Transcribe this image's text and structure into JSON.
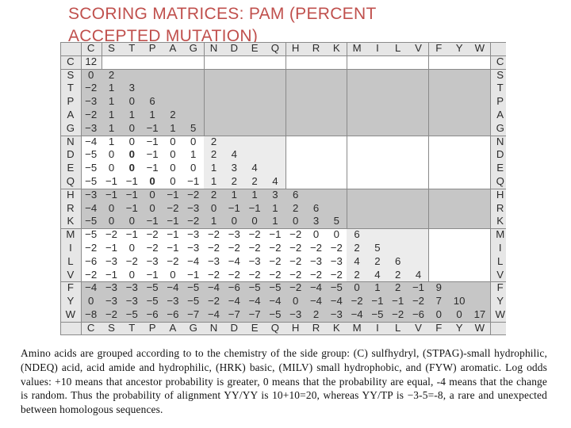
{
  "title": {
    "line1": "SCORING MATRICES: PAM (PERCENT",
    "line2": "ACCEPTED  MUTATION)"
  },
  "matrix": {
    "amino_acids": [
      "C",
      "S",
      "T",
      "P",
      "A",
      "G",
      "N",
      "D",
      "E",
      "Q",
      "H",
      "R",
      "K",
      "M",
      "I",
      "L",
      "V",
      "F",
      "Y",
      "W"
    ],
    "group_sizes": [
      1,
      5,
      4,
      3,
      4,
      3
    ],
    "rows": [
      [
        "12"
      ],
      [
        "0",
        "2"
      ],
      [
        "−2",
        "1",
        "3"
      ],
      [
        "−3",
        "1",
        "0",
        "6"
      ],
      [
        "−2",
        "1",
        "1",
        "1",
        "2"
      ],
      [
        "−3",
        "1",
        "0",
        "−1",
        "1",
        "5"
      ],
      [
        "−4",
        "1",
        "0",
        "−1",
        "0",
        "0",
        "2"
      ],
      [
        "−5",
        "0",
        "0",
        "−1",
        "0",
        "1",
        "2",
        "4"
      ],
      [
        "−5",
        "0",
        "0",
        "−1",
        "0",
        "0",
        "1",
        "3",
        "4"
      ],
      [
        "−5",
        "−1",
        "−1",
        "0",
        "0",
        "−1",
        "1",
        "2",
        "2",
        "4"
      ],
      [
        "−3",
        "−1",
        "−1",
        "0",
        "−1",
        "−2",
        "2",
        "1",
        "1",
        "3",
        "6"
      ],
      [
        "−4",
        "0",
        "−1",
        "0",
        "−2",
        "−3",
        "0",
        "−1",
        "−1",
        "1",
        "2",
        "6"
      ],
      [
        "−5",
        "0",
        "0",
        "−1",
        "−1",
        "−2",
        "1",
        "0",
        "0",
        "1",
        "0",
        "3",
        "5"
      ],
      [
        "−5",
        "−2",
        "−1",
        "−2",
        "−1",
        "−3",
        "−2",
        "−3",
        "−2",
        "−1",
        "−2",
        "0",
        "0",
        "6"
      ],
      [
        "−2",
        "−1",
        "0",
        "−2",
        "−1",
        "−3",
        "−2",
        "−2",
        "−2",
        "−2",
        "−2",
        "−2",
        "−2",
        "2",
        "5"
      ],
      [
        "−6",
        "−3",
        "−2",
        "−3",
        "−2",
        "−4",
        "−3",
        "−4",
        "−3",
        "−2",
        "−2",
        "−3",
        "−3",
        "4",
        "2",
        "6"
      ],
      [
        "−2",
        "−1",
        "0",
        "−1",
        "0",
        "−1",
        "−2",
        "−2",
        "−2",
        "−2",
        "−2",
        "−2",
        "−2",
        "2",
        "4",
        "2",
        "4"
      ],
      [
        "−4",
        "−3",
        "−3",
        "−5",
        "−4",
        "−5",
        "−4",
        "−6",
        "−5",
        "−5",
        "−2",
        "−4",
        "−5",
        "0",
        "1",
        "2",
        "−1",
        "9"
      ],
      [
        "0",
        "−3",
        "−3",
        "−5",
        "−3",
        "−5",
        "−2",
        "−4",
        "−4",
        "−4",
        "0",
        "−4",
        "−4",
        "−2",
        "−1",
        "−1",
        "−2",
        "7",
        "10"
      ],
      [
        "−8",
        "−2",
        "−5",
        "−6",
        "−6",
        "−7",
        "−4",
        "−7",
        "−7",
        "−5",
        "−3",
        "2",
        "−3",
        "−4",
        "−5",
        "−2",
        "−6",
        "0",
        "0",
        "17"
      ]
    ],
    "bold_cells": [
      [
        7,
        2
      ],
      [
        8,
        2
      ],
      [
        9,
        3
      ]
    ],
    "colors": {
      "diag_light": "#ececec",
      "row_band_dark": "#c6c6c6",
      "header": "#e6e6e6",
      "grid_line": "#8a8a8a",
      "text": "#2b2b2b"
    }
  },
  "caption": {
    "text": "Amino acids are grouped according to to the chemistry of the side group: (C) sulfhydryl, (STPAG)-small hydrophilic, (NDEQ) acid, acid amide and hydrophilic, (HRK) basic, (MILV) small hydrophobic, and (FYW) aromatic. Log odds values: +10 means that ancestor probability is greater, 0 means that the probability are equal, -4 means that the change is random. Thus the probability of alignment YY/YY is 10+10=20, whereas YY/TP is −3-5=-8, a rare and unexpected between homologous sequences."
  }
}
